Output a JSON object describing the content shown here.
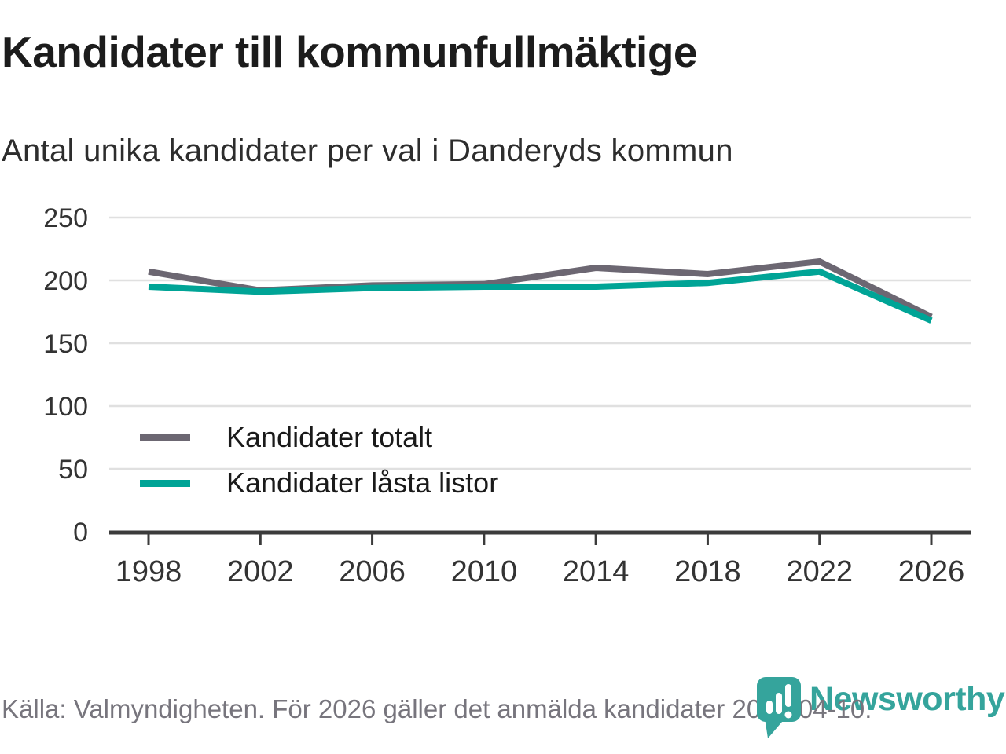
{
  "title": "Kandidater till kommunfullmäktige",
  "subtitle": "Antal unika kandidater per val i Danderyds kommun",
  "legend": [
    {
      "label": "Kandidater totalt",
      "color": "#6c6772"
    },
    {
      "label": "Kandidater låsta listor",
      "color": "#00a496"
    }
  ],
  "footer": {
    "source_note": "Källa: Valmyndigheten. För 2026 gäller det anmälda kandidater 2026-04-10."
  },
  "branding": {
    "logo_text": "Newsworthy",
    "logo_color": "#35a49c",
    "logo_icon": "newsworthy-pin-bar-chart"
  },
  "colors": {
    "total_line": "#6c6772",
    "locked_line": "#00a496",
    "grid": "#e0e0e0",
    "axis": "#3b3b3b",
    "tick_label": "#333333",
    "title_text": "#1c1c1c",
    "subtitle_text": "#2d2d2d",
    "footer_text": "#77757d"
  },
  "chart_data": {
    "type": "line",
    "title": "Kandidater till kommunfullmäktige",
    "subtitle": "Antal unika kandidater per val i Danderyds kommun",
    "x": [
      1998,
      2002,
      2006,
      2010,
      2014,
      2018,
      2022,
      2026
    ],
    "series": [
      {
        "name": "Kandidater totalt",
        "color": "#6c6772",
        "values": [
          207,
          192,
          196,
          197,
          210,
          205,
          215,
          171
        ]
      },
      {
        "name": "Kandidater låsta listor",
        "color": "#00a496",
        "values": [
          195,
          191,
          194,
          195,
          195,
          198,
          207,
          168
        ]
      }
    ],
    "xlabel": "",
    "ylabel": "",
    "ylim": [
      0,
      250
    ],
    "yticks": [
      0,
      50,
      100,
      150,
      200,
      250
    ],
    "xticks": [
      1998,
      2002,
      2006,
      2010,
      2014,
      2018,
      2022,
      2026
    ],
    "grid": "horizontal",
    "legend_position": "inside-left-bottom"
  }
}
